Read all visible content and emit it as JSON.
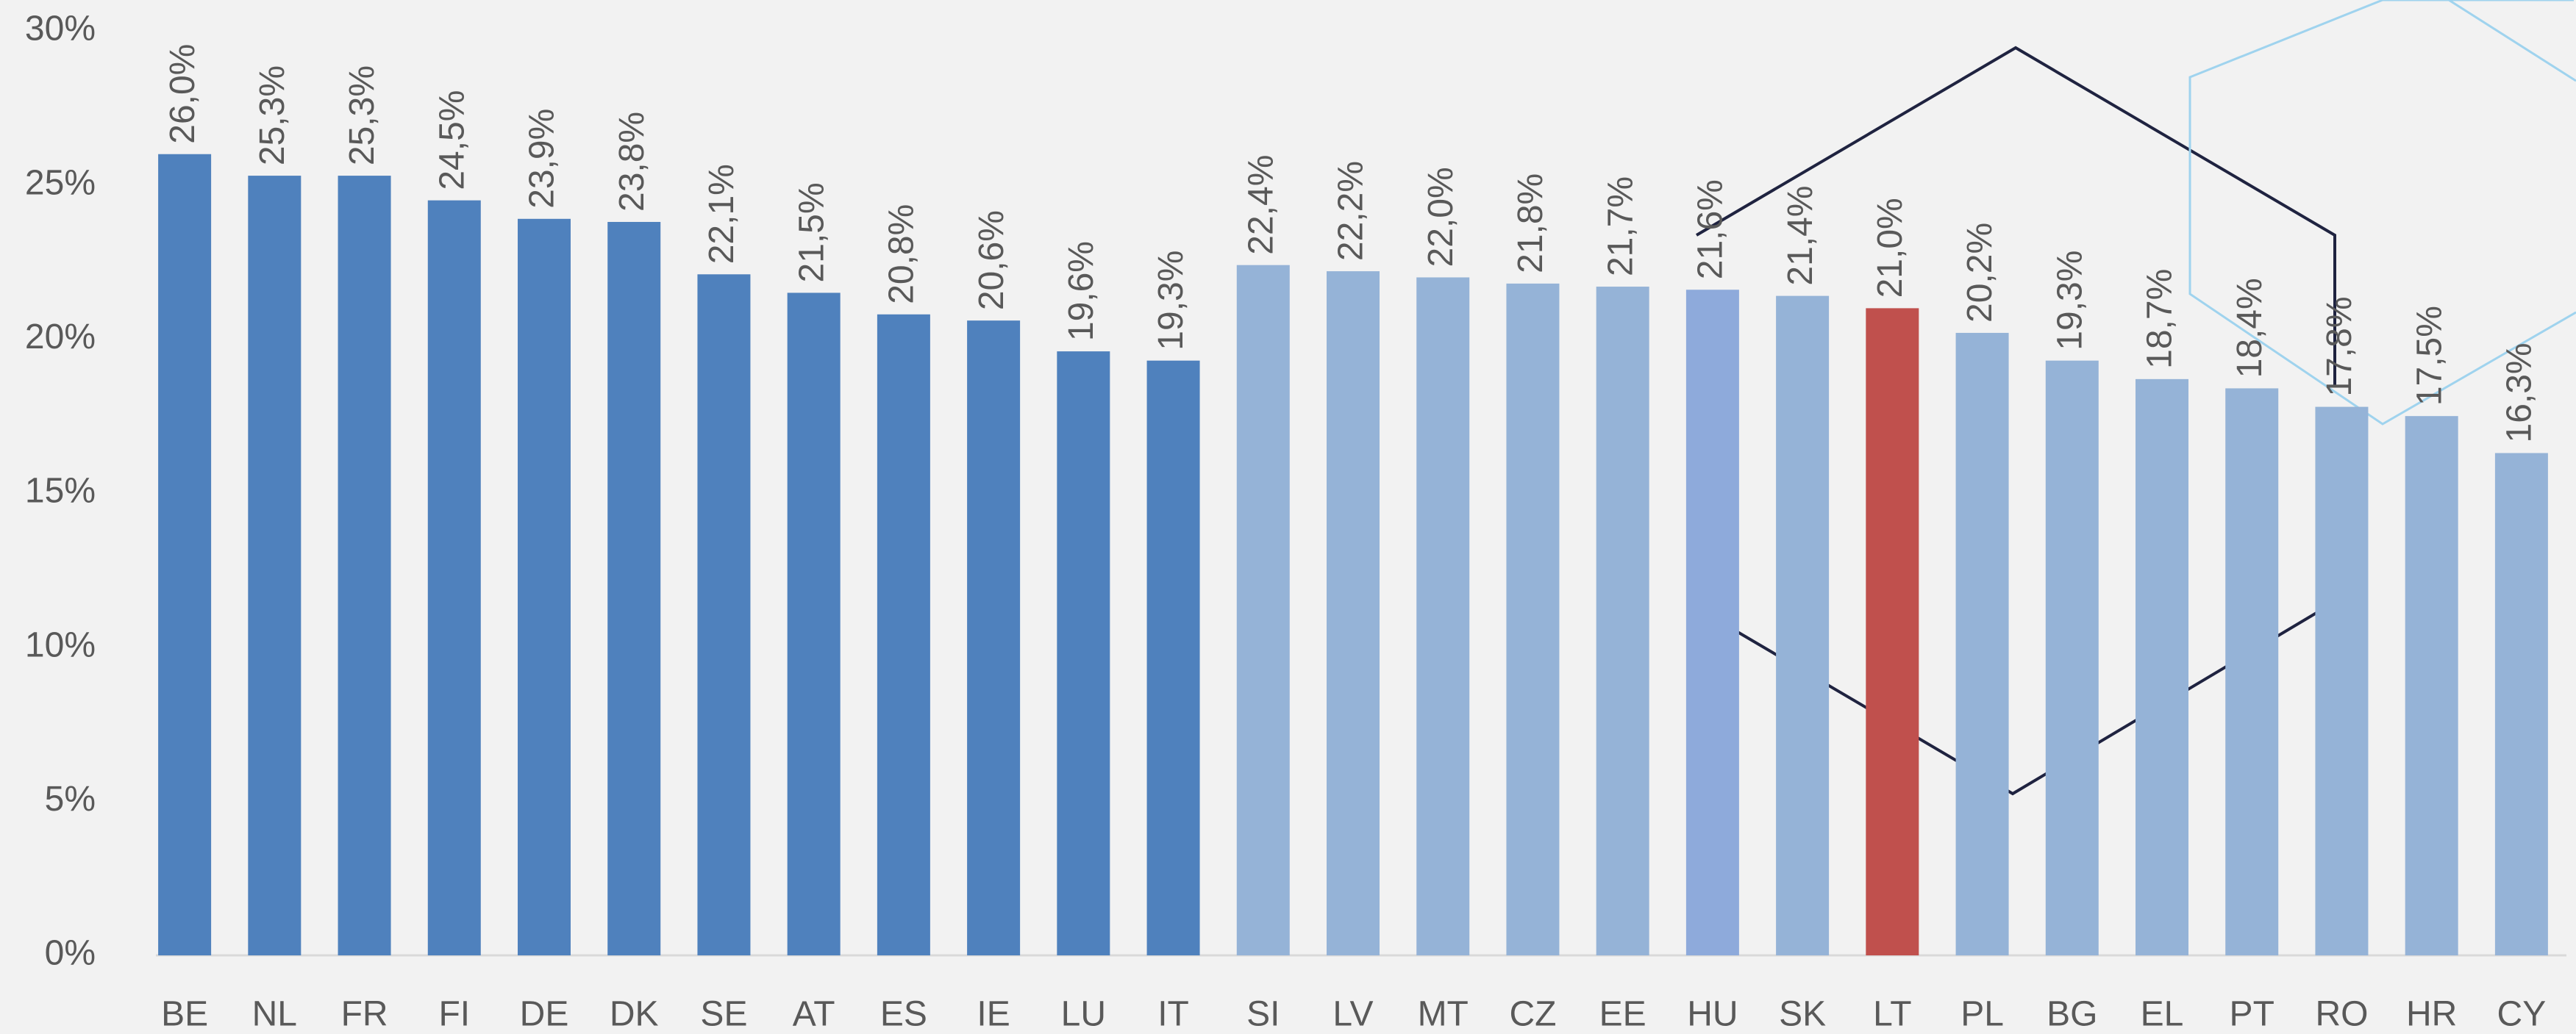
{
  "chart_data": {
    "type": "bar",
    "categories": [
      "BE",
      "NL",
      "FR",
      "FI",
      "DE",
      "DK",
      "SE",
      "AT",
      "ES",
      "IE",
      "LU",
      "IT",
      "SI",
      "LV",
      "MT",
      "CZ",
      "EE",
      "HU",
      "SK",
      "LT",
      "PL",
      "BG",
      "EL",
      "PT",
      "RO",
      "HR",
      "CY"
    ],
    "values": [
      26.0,
      25.3,
      25.3,
      24.5,
      23.9,
      23.8,
      22.1,
      21.5,
      20.8,
      20.6,
      19.6,
      19.3,
      22.4,
      22.2,
      22.0,
      21.8,
      21.7,
      21.6,
      21.4,
      21.0,
      20.2,
      19.3,
      18.7,
      18.4,
      17.8,
      17.5,
      16.3
    ],
    "value_labels": [
      "26,0%",
      "25,3%",
      "25,3%",
      "24,5%",
      "23,9%",
      "23,8%",
      "22,1%",
      "21,5%",
      "20,8%",
      "20,6%",
      "19,6%",
      "19,3%",
      "22,4%",
      "22,2%",
      "22,0%",
      "21,8%",
      "21,7%",
      "21,6%",
      "21,4%",
      "21,0%",
      "20,2%",
      "19,3%",
      "18,7%",
      "18,4%",
      "17,8%",
      "17,5%",
      "16,3%"
    ],
    "colors": [
      "#4f81bd",
      "#4f81bd",
      "#4f81bd",
      "#4f81bd",
      "#4f81bd",
      "#4f81bd",
      "#4f81bd",
      "#4f81bd",
      "#4f81bd",
      "#4f81bd",
      "#4f81bd",
      "#4f81bd",
      "#95b3d7",
      "#95b3d7",
      "#95b3d7",
      "#95b3d7",
      "#95b3d7",
      "#8eaadb",
      "#95b3d7",
      "#c0504d",
      "#95b3d7",
      "#95b3d7",
      "#95b3d7",
      "#95b3d7",
      "#95b3d7",
      "#95b3d7",
      "#95b3d7"
    ],
    "ylim": [
      0,
      30
    ],
    "yticks": [
      {
        "value": 0,
        "label": "0%"
      },
      {
        "value": 5,
        "label": "5%"
      },
      {
        "value": 10,
        "label": "10%"
      },
      {
        "value": 15,
        "label": "15%"
      },
      {
        "value": 20,
        "label": "20%"
      },
      {
        "value": 25,
        "label": "25%"
      },
      {
        "value": 30,
        "label": "30%"
      }
    ],
    "grid": false
  }
}
